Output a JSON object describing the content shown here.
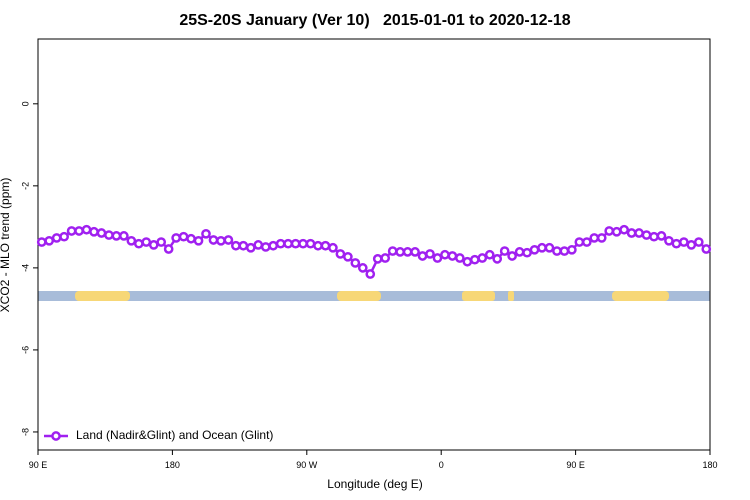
{
  "chart_data": {
    "type": "line",
    "title": "25S-20S January (Ver 10)   2015-01-01 to 2020-12-18",
    "xlabel": "Longitude (deg E)",
    "ylabel": "XCO2 - MLO trend (ppm)",
    "x": [
      92.5,
      97.5,
      102.5,
      107.5,
      112.5,
      117.5,
      122.5,
      127.5,
      132.5,
      137.5,
      142.5,
      147.5,
      152.5,
      157.5,
      162.5,
      167.5,
      172.5,
      177.5,
      182.5,
      187.5,
      192.5,
      197.5,
      202.5,
      207.5,
      212.5,
      217.5,
      222.5,
      227.5,
      232.5,
      237.5,
      242.5,
      247.5,
      252.5,
      257.5,
      262.5,
      267.5,
      272.5,
      277.5,
      282.5,
      287.5,
      292.5,
      297.5,
      302.5,
      307.5,
      312.5,
      317.5,
      322.5,
      327.5,
      332.5,
      337.5,
      342.5,
      347.5,
      352.5,
      357.5,
      362.5,
      367.5,
      372.5,
      377.5,
      382.5,
      387.5,
      392.5,
      397.5,
      402.5,
      407.5,
      412.5,
      417.5,
      422.5,
      427.5,
      432.5,
      437.5,
      442.5,
      447.5,
      452.5,
      457.5,
      462.5,
      467.5,
      472.5,
      477.5,
      482.5,
      487.5,
      492.5,
      497.5,
      502.5,
      507.5,
      512.5,
      517.5,
      522.5,
      527.5,
      532.5,
      537.5
    ],
    "series": [
      {
        "name": "Land (Nadir&Glint) and Ocean (Glint)",
        "color": "#a020f0",
        "values": [
          -3.37,
          -3.34,
          -3.27,
          -3.24,
          -3.1,
          -3.1,
          -3.07,
          -3.12,
          -3.15,
          -3.2,
          -3.22,
          -3.22,
          -3.34,
          -3.41,
          -3.37,
          -3.44,
          -3.37,
          -3.54,
          -3.27,
          -3.24,
          -3.29,
          -3.34,
          -3.17,
          -3.32,
          -3.34,
          -3.32,
          -3.46,
          -3.46,
          -3.51,
          -3.44,
          -3.49,
          -3.46,
          -3.41,
          -3.41,
          -3.41,
          -3.41,
          -3.41,
          -3.46,
          -3.46,
          -3.51,
          -3.66,
          -3.73,
          -3.88,
          -4.0,
          -4.15,
          -3.78,
          -3.76,
          -3.59,
          -3.61,
          -3.61,
          -3.61,
          -3.71,
          -3.66,
          -3.76,
          -3.68,
          -3.71,
          -3.76,
          -3.85,
          -3.8,
          -3.76,
          -3.68,
          -3.78,
          -3.59,
          -3.71,
          -3.61,
          -3.63,
          -3.56,
          -3.51,
          -3.51,
          -3.59,
          -3.59,
          -3.56,
          -3.37,
          -3.37,
          -3.27,
          -3.27,
          -3.1,
          -3.12,
          -3.07,
          -3.15,
          -3.15,
          -3.2,
          -3.24,
          -3.22,
          -3.34,
          -3.41,
          -3.37,
          -3.44,
          -3.37,
          -3.54
        ]
      }
    ],
    "xlim": [
      90,
      540
    ],
    "xticks": [
      {
        "value": 90,
        "label": "90 E"
      },
      180,
      {
        "value": 270,
        "label": "90 W"
      },
      {
        "value": 360,
        "label": "0"
      },
      {
        "value": 450,
        "label": "90 E"
      },
      {
        "value": 540,
        "label": "180"
      }
    ],
    "ylim": [
      -8.44,
      1.58
    ],
    "yticks": [
      0,
      -2,
      -4,
      -6,
      -8
    ],
    "legend": "lower left"
  }
}
